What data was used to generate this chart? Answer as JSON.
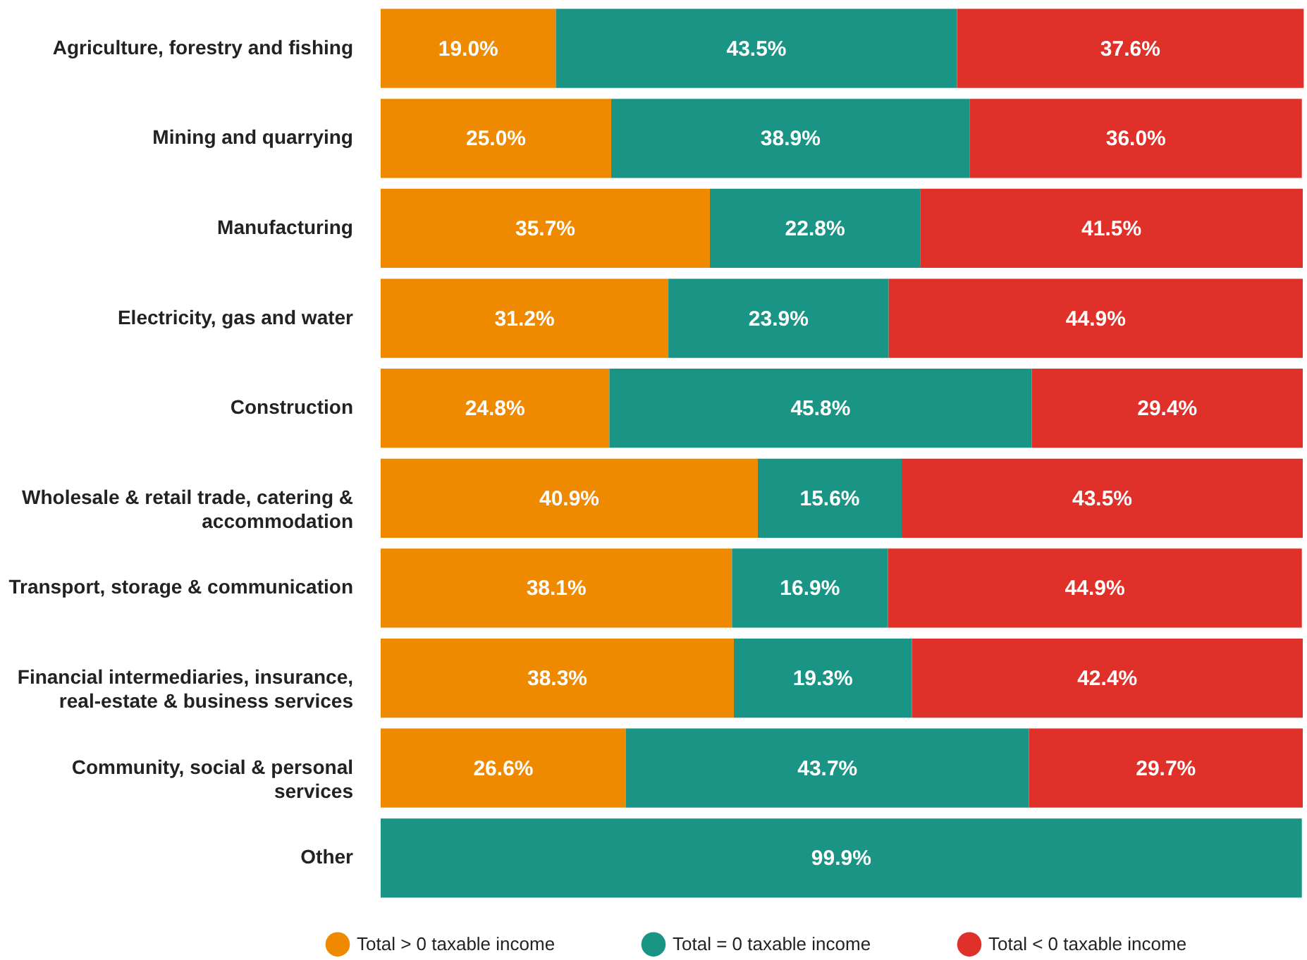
{
  "chart_data": {
    "type": "bar",
    "orientation": "horizontal",
    "stacked": true,
    "categories": [
      "Agriculture, forestry and fishing",
      "Mining and quarrying",
      "Manufacturing",
      "Electricity, gas and water",
      "Construction",
      "Wholesale & retail trade, catering & accommodation",
      "Transport, storage & communication",
      "Financial intermediaries, insurance, real-estate & business services",
      "Community, social & personal services",
      "Other"
    ],
    "series": [
      {
        "name": "Total > 0 taxable income",
        "color": "#ef8a00",
        "values": [
          19.0,
          25.0,
          35.7,
          31.2,
          24.8,
          40.9,
          38.1,
          38.3,
          26.6,
          null
        ],
        "value_labels": [
          "19.0%",
          "25.0%",
          "35.7%",
          "31.2%",
          "24.8%",
          "40.9%",
          "38.1%",
          "38.3%",
          "26.6%",
          null
        ]
      },
      {
        "name": "Total = 0 taxable income",
        "color": "#1a9585",
        "values": [
          43.5,
          38.9,
          22.8,
          23.9,
          45.8,
          15.6,
          16.9,
          19.3,
          43.7,
          99.9
        ],
        "value_labels": [
          "43.5%",
          "38.9%",
          "22.8%",
          "23.9%",
          "45.8%",
          "15.6%",
          "16.9%",
          "19.3%",
          "43.7%",
          "99.9%"
        ]
      },
      {
        "name": "Total < 0 taxable income",
        "color": "#e0302a",
        "values": [
          37.6,
          36.0,
          41.5,
          44.9,
          29.4,
          43.5,
          44.9,
          42.4,
          29.7,
          null
        ],
        "value_labels": [
          "37.6%",
          "36.0%",
          "41.5%",
          "44.9%",
          "29.4%",
          "43.5%",
          "44.9%",
          "42.4%",
          "29.7%",
          null
        ]
      }
    ],
    "xlim": [
      0,
      100
    ],
    "tick_labels": "y",
    "legend": "bottom"
  }
}
